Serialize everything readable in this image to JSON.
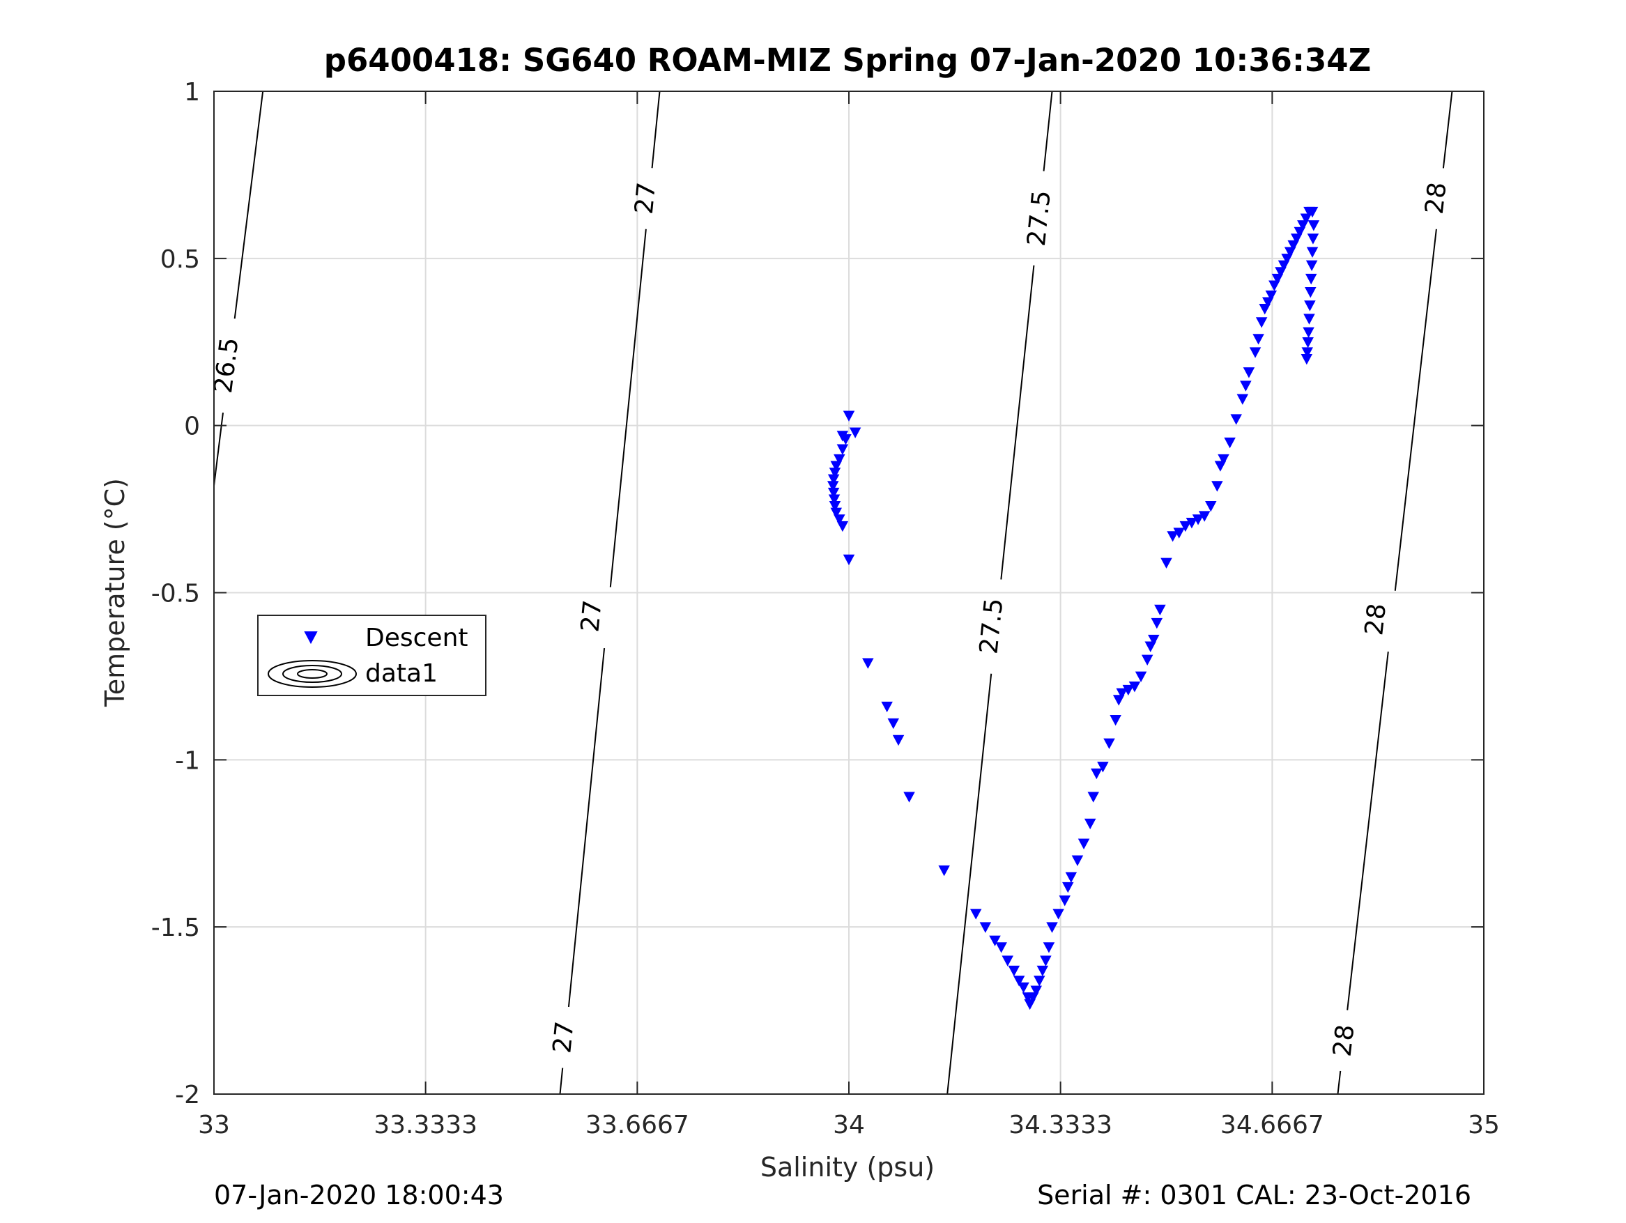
{
  "chart_data": {
    "type": "scatter",
    "title": "p6400418: SG640 ROAM-MIZ Spring 07-Jan-2020 10:36:34Z",
    "xlabel": "Salinity (psu)",
    "ylabel": "Temperature (°C)",
    "xlim": [
      33,
      35
    ],
    "ylim": [
      -2,
      1
    ],
    "xticks": [
      33,
      33.3333,
      33.6667,
      34,
      34.3333,
      34.6667,
      35
    ],
    "xtick_labels": [
      "33",
      "33.3333",
      "33.6667",
      "34",
      "34.3333",
      "34.6667",
      "35"
    ],
    "yticks": [
      1,
      0.5,
      0,
      -0.5,
      -1,
      -1.5,
      -2
    ],
    "ytick_labels": [
      "1",
      "0.5",
      "0",
      "-0.5",
      "-1",
      "-1.5",
      "-2"
    ],
    "grid": true,
    "legend": {
      "placement": "left-middle",
      "entries": [
        "Descent",
        "data1"
      ]
    },
    "footer_left": "07-Jan-2020 18:00:43",
    "footer_right": "Serial #: 0301  CAL: 23-Oct-2016",
    "marker_color": "#0000ff",
    "series": [
      {
        "name": "Descent",
        "marker": "down-triangle",
        "color": "#0000ff",
        "points": [
          [
            34.0,
            0.03
          ],
          [
            34.01,
            -0.02
          ],
          [
            33.99,
            -0.03
          ],
          [
            33.995,
            -0.04
          ],
          [
            33.99,
            -0.07
          ],
          [
            33.985,
            -0.1
          ],
          [
            33.98,
            -0.12
          ],
          [
            33.978,
            -0.14
          ],
          [
            33.976,
            -0.16
          ],
          [
            33.975,
            -0.18
          ],
          [
            33.976,
            -0.2
          ],
          [
            33.977,
            -0.22
          ],
          [
            33.978,
            -0.24
          ],
          [
            33.98,
            -0.26
          ],
          [
            33.985,
            -0.28
          ],
          [
            33.99,
            -0.3
          ],
          [
            34.0,
            -0.4
          ],
          [
            34.03,
            -0.71
          ],
          [
            34.06,
            -0.84
          ],
          [
            34.07,
            -0.89
          ],
          [
            34.078,
            -0.94
          ],
          [
            34.095,
            -1.11
          ],
          [
            34.15,
            -1.33
          ],
          [
            34.2,
            -1.46
          ],
          [
            34.215,
            -1.5
          ],
          [
            34.23,
            -1.54
          ],
          [
            34.24,
            -1.56
          ],
          [
            34.25,
            -1.6
          ],
          [
            34.26,
            -1.63
          ],
          [
            34.268,
            -1.66
          ],
          [
            34.275,
            -1.68
          ],
          [
            34.282,
            -1.71
          ],
          [
            34.285,
            -1.73
          ],
          [
            34.29,
            -1.71
          ],
          [
            34.295,
            -1.69
          ],
          [
            34.3,
            -1.66
          ],
          [
            34.305,
            -1.63
          ],
          [
            34.31,
            -1.6
          ],
          [
            34.315,
            -1.56
          ],
          [
            34.32,
            -1.5
          ],
          [
            34.33,
            -1.46
          ],
          [
            34.34,
            -1.42
          ],
          [
            34.345,
            -1.38
          ],
          [
            34.35,
            -1.35
          ],
          [
            34.36,
            -1.3
          ],
          [
            34.37,
            -1.25
          ],
          [
            34.38,
            -1.19
          ],
          [
            34.385,
            -1.11
          ],
          [
            34.39,
            -1.04
          ],
          [
            34.4,
            -1.02
          ],
          [
            34.41,
            -0.95
          ],
          [
            34.42,
            -0.88
          ],
          [
            34.425,
            -0.82
          ],
          [
            34.43,
            -0.8
          ],
          [
            34.44,
            -0.79
          ],
          [
            34.45,
            -0.78
          ],
          [
            34.46,
            -0.75
          ],
          [
            34.47,
            -0.7
          ],
          [
            34.475,
            -0.66
          ],
          [
            34.48,
            -0.64
          ],
          [
            34.485,
            -0.59
          ],
          [
            34.49,
            -0.55
          ],
          [
            34.5,
            -0.41
          ],
          [
            34.51,
            -0.33
          ],
          [
            34.52,
            -0.32
          ],
          [
            34.53,
            -0.3
          ],
          [
            34.54,
            -0.29
          ],
          [
            34.55,
            -0.28
          ],
          [
            34.56,
            -0.27
          ],
          [
            34.57,
            -0.24
          ],
          [
            34.58,
            -0.18
          ],
          [
            34.585,
            -0.12
          ],
          [
            34.59,
            -0.1
          ],
          [
            34.6,
            -0.05
          ],
          [
            34.61,
            0.02
          ],
          [
            34.62,
            0.08
          ],
          [
            34.625,
            0.12
          ],
          [
            34.63,
            0.16
          ],
          [
            34.64,
            0.22
          ],
          [
            34.645,
            0.26
          ],
          [
            34.65,
            0.31
          ],
          [
            34.655,
            0.35
          ],
          [
            34.66,
            0.37
          ],
          [
            34.665,
            0.39
          ],
          [
            34.67,
            0.42
          ],
          [
            34.675,
            0.44
          ],
          [
            34.68,
            0.46
          ],
          [
            34.685,
            0.48
          ],
          [
            34.69,
            0.5
          ],
          [
            34.695,
            0.52
          ],
          [
            34.7,
            0.54
          ],
          [
            34.705,
            0.56
          ],
          [
            34.71,
            0.58
          ],
          [
            34.715,
            0.6
          ],
          [
            34.72,
            0.62
          ],
          [
            34.725,
            0.64
          ],
          [
            34.73,
            0.64
          ],
          [
            34.732,
            0.6
          ],
          [
            34.731,
            0.56
          ],
          [
            34.73,
            0.52
          ],
          [
            34.729,
            0.48
          ],
          [
            34.728,
            0.44
          ],
          [
            34.727,
            0.4
          ],
          [
            34.726,
            0.36
          ],
          [
            34.725,
            0.32
          ],
          [
            34.724,
            0.28
          ],
          [
            34.723,
            0.25
          ],
          [
            34.722,
            0.22
          ],
          [
            34.721,
            0.2
          ]
        ]
      },
      {
        "name": "data1",
        "type": "contour",
        "color": "#000000",
        "levels": [
          {
            "value": 26.5,
            "points": [
              [
                33.077,
                1.0
              ],
              [
                33.0,
                -0.18
              ]
            ],
            "label_positions": [
              [
                33.02,
                0.18
              ]
            ]
          },
          {
            "value": 27,
            "points": [
              [
                33.702,
                1.0
              ],
              [
                33.545,
                -2.0
              ]
            ],
            "label_positions": [
              [
                33.68,
                0.68
              ],
              [
                33.595,
                -0.57
              ],
              [
                33.551,
                -1.83
              ]
            ]
          },
          {
            "value": 27.5,
            "points": [
              [
                34.32,
                1.0
              ],
              [
                34.155,
                -2.0
              ]
            ],
            "label_positions": [
              [
                34.3,
                0.62
              ],
              [
                34.225,
                -0.6
              ]
            ]
          },
          {
            "value": 28,
            "points": [
              [
                34.95,
                1.0
              ],
              [
                34.77,
                -2.0
              ]
            ],
            "label_positions": [
              [
                34.925,
                0.68
              ],
              [
                34.83,
                -0.58
              ],
              [
                34.78,
                -1.84
              ]
            ]
          }
        ]
      }
    ]
  }
}
